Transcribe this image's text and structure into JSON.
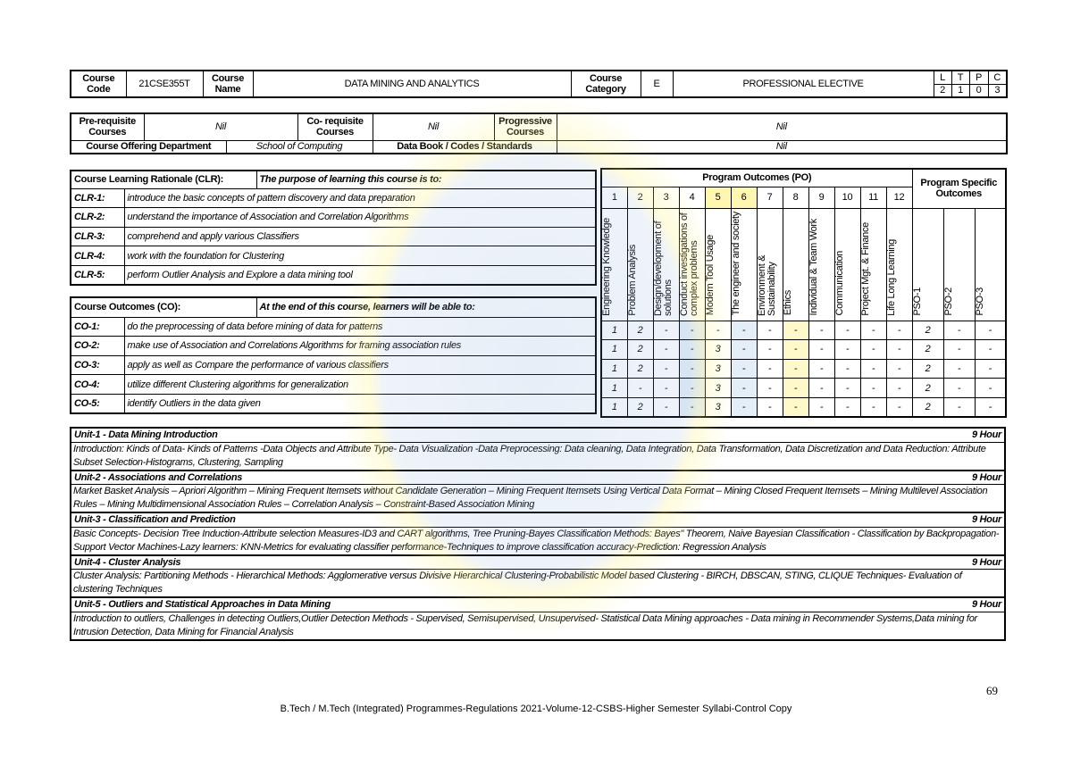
{
  "course": {
    "code_label": "Course Code",
    "code": "21CSE355T",
    "name_label": "Course Name",
    "name": "DATA MINING AND ANALYTICS",
    "category_label": "Course Category",
    "category": "E",
    "category_name": "PROFESSIONAL ELECTIVE",
    "ltpc_labels": [
      "L",
      "T",
      "P",
      "C"
    ],
    "ltpc_values": [
      "2",
      "1",
      "0",
      "3"
    ]
  },
  "prereq": {
    "pre_label": "Pre-requisite Courses",
    "pre": "Nil",
    "co_label": "Co- requisite Courses",
    "co": "Nil",
    "prog_label": "Progressive Courses",
    "prog": "Nil",
    "dept_label": "Course Offering Department",
    "dept": "School of Computing",
    "databook_label": "Data Book / Codes / Standards",
    "databook": "Nil"
  },
  "clr": {
    "title": "Course Learning Rationale (CLR):",
    "purpose": "The purpose of learning this course is to:",
    "items": [
      {
        "id": "CLR-1:",
        "text": "introduce the basic concepts of pattern discovery and data preparation"
      },
      {
        "id": "CLR-2:",
        "text": "understand the importance of Association and Correlation Algorithms"
      },
      {
        "id": "CLR-3:",
        "text": "comprehend and apply various Classifiers"
      },
      {
        "id": "CLR-4:",
        "text": "work with the foundation for Clustering"
      },
      {
        "id": "CLR-5:",
        "text": "perform Outlier Analysis and Explore a data mining tool"
      }
    ]
  },
  "co": {
    "title": "Course Outcomes (CO):",
    "purpose": "At the end of this course, learners will be able to:",
    "items": [
      {
        "id": "CO-1:",
        "text": "do the preprocessing of data before mining of data for patterns",
        "values": [
          "1",
          "2",
          "-",
          "-",
          "-",
          "-",
          "-",
          "-",
          "-",
          "-",
          "-",
          "-",
          "2",
          "-",
          "-"
        ]
      },
      {
        "id": "CO-2:",
        "text": "make use of Association and Correlations Algorithms for framing association rules",
        "values": [
          "1",
          "2",
          "-",
          "-",
          "3",
          "-",
          "-",
          "-",
          "-",
          "-",
          "-",
          "-",
          "2",
          "-",
          "-"
        ]
      },
      {
        "id": "CO-3:",
        "text": "apply as well as Compare the performance of various classifiers",
        "values": [
          "1",
          "2",
          "-",
          "-",
          "3",
          "-",
          "-",
          "-",
          "-",
          "-",
          "-",
          "-",
          "2",
          "-",
          "-"
        ]
      },
      {
        "id": "CO-4:",
        "text": "utilize different Clustering algorithms for generalization",
        "values": [
          "1",
          "-",
          "-",
          "-",
          "3",
          "-",
          "-",
          "-",
          "-",
          "-",
          "-",
          "-",
          "2",
          "-",
          "-"
        ]
      },
      {
        "id": "CO-5:",
        "text": "identify Outliers in the data given",
        "values": [
          "1",
          "2",
          "-",
          "-",
          "3",
          "-",
          "-",
          "-",
          "-",
          "-",
          "-",
          "-",
          "2",
          "-",
          "-"
        ]
      }
    ]
  },
  "po": {
    "title": "Program Outcomes (PO)",
    "pso_title": "Program Specific Outcomes",
    "numbers": [
      "1",
      "2",
      "3",
      "4",
      "5",
      "6",
      "7",
      "8",
      "9",
      "10",
      "11",
      "12"
    ],
    "labels": [
      "Engineering Knowledge",
      "Problem Analysis",
      "Design/development of solutions",
      "Conduct investigations of complex problems",
      "Modern Tool Usage",
      "The engineer and society",
      "Environment & Sustainability",
      "Ethics",
      "Individual & Team Work",
      "Communication",
      "Project Mgt. & Finance",
      "Life Long Learning",
      "PSO-1",
      "PSO-2",
      "PSO-3"
    ]
  },
  "units": [
    {
      "title": "Unit-1 - Data Mining Introduction",
      "hours": "9 Hour",
      "body": "Introduction: Kinds of Data- Kinds of Patterns -Data Objects and Attribute Type- Data Visualization -Data Preprocessing: Data cleaning, Data Integration, Data Transformation, Data Discretization and Data Reduction: Attribute Subset Selection-Histograms, Clustering, Sampling"
    },
    {
      "title": "Unit-2 - Associations and Correlations",
      "hours": "9 Hour",
      "body": "Market Basket Analysis – Apriori Algorithm – Mining Frequent Itemsets without Candidate Generation – Mining Frequent Itemsets Using Vertical Data Format – Mining Closed Frequent Itemsets – Mining Multilevel Association Rules – Mining Multidimensional Association Rules – Correlation Analysis – Constraint-Based Association Mining"
    },
    {
      "title": "Unit-3 - Classification and Prediction",
      "hours": "9 Hour",
      "body": "Basic Concepts- Decision Tree Induction-Attribute selection Measures-ID3 and CART algorithms, Tree Pruning-Bayes Classification Methods: Bayes\" Theorem, Naive Bayesian Classification - Classification by Backpropagation- Support Vector Machines-Lazy learners: KNN-Metrics for evaluating classifier performance-Techniques to improve classification accuracy-Prediction: Regression Analysis"
    },
    {
      "title": "Unit-4 - Cluster Analysis",
      "hours": "9 Hour",
      "body": "Cluster Analysis: Partitioning Methods - Hierarchical Methods: Agglomerative versus Divisive Hierarchical Clustering-Probabilistic Model based Clustering - BIRCH, DBSCAN, STING, CLIQUE Techniques- Evaluation of clustering Techniques"
    },
    {
      "title": "Unit-5 - Outliers and Statistical Approaches in Data Mining",
      "hours": "9 Hour",
      "body": "Introduction to outliers, Challenges in detecting Outliers,Outlier Detection Methods - Supervised, Semisupervised, Unsupervised- Statistical Data Mining approaches - Data mining in Recommender Systems,Data mining for Intrusion Detection, Data Mining for Financial Analysis"
    }
  ],
  "footer": {
    "page": "69",
    "text": "B.Tech / M.Tech (Integrated) Programmes-Regulations 2021-Volume-12-CSBS-Higher Semester Syllabi-Control Copy"
  }
}
